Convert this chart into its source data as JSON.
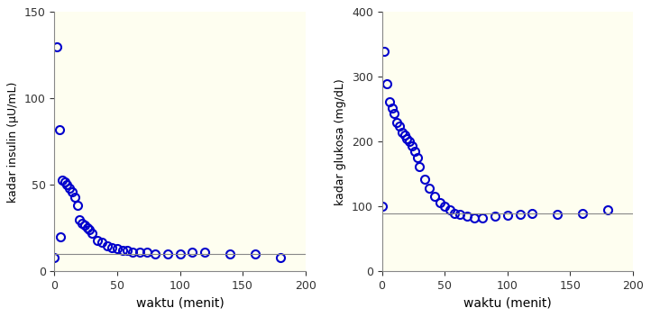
{
  "insulin_time": [
    2,
    4,
    6,
    8,
    10,
    12,
    14,
    16,
    18,
    20,
    22,
    24,
    26,
    28,
    30,
    34,
    38,
    42,
    46,
    50,
    54,
    58,
    62,
    68,
    74,
    80,
    90,
    100,
    110,
    120,
    140,
    160,
    180
  ],
  "insulin_values": [
    130,
    82,
    53,
    52,
    50,
    48,
    46,
    43,
    38,
    30,
    28,
    27,
    25,
    24,
    22,
    18,
    17,
    15,
    14,
    13,
    12,
    12,
    11,
    11,
    11,
    10,
    10,
    10,
    11,
    11,
    10,
    10,
    8
  ],
  "insulin_extra_time": [
    0,
    5
  ],
  "insulin_extra_values": [
    8,
    20
  ],
  "glucose_time": [
    2,
    4,
    6,
    8,
    10,
    12,
    14,
    16,
    18,
    20,
    22,
    24,
    26,
    28,
    30,
    34,
    38,
    42,
    46,
    50,
    54,
    58,
    62,
    68,
    74,
    80,
    90,
    100,
    110,
    120,
    140,
    160,
    180
  ],
  "glucose_values": [
    340,
    290,
    262,
    252,
    244,
    230,
    224,
    215,
    210,
    205,
    200,
    193,
    185,
    175,
    162,
    142,
    128,
    116,
    106,
    100,
    95,
    90,
    88,
    85,
    83,
    82,
    85,
    86,
    88,
    90,
    88,
    90,
    95
  ],
  "glucose_extra_time": [
    0
  ],
  "glucose_extra_values": [
    100
  ],
  "marker_color": "#0000CC",
  "marker_size": 6.5,
  "marker_linewidth": 1.5,
  "xlabel": "waktu (menit)",
  "ylabel_left": "kadar insulin (μU/mL)",
  "ylabel_right": "kadar glukosa (mg/dL)",
  "xlim": [
    0,
    200
  ],
  "ylim_insulin": [
    0,
    150
  ],
  "ylim_glucose": [
    0,
    400
  ],
  "xticks": [
    0,
    50,
    100,
    150,
    200
  ],
  "yticks_insulin": [
    0,
    50,
    100,
    150
  ],
  "yticks_glucose": [
    0,
    100,
    200,
    300,
    400
  ],
  "bg_color": "#FEFEF0",
  "hline_insulin_y": 10,
  "hline_glucose_y": 90
}
